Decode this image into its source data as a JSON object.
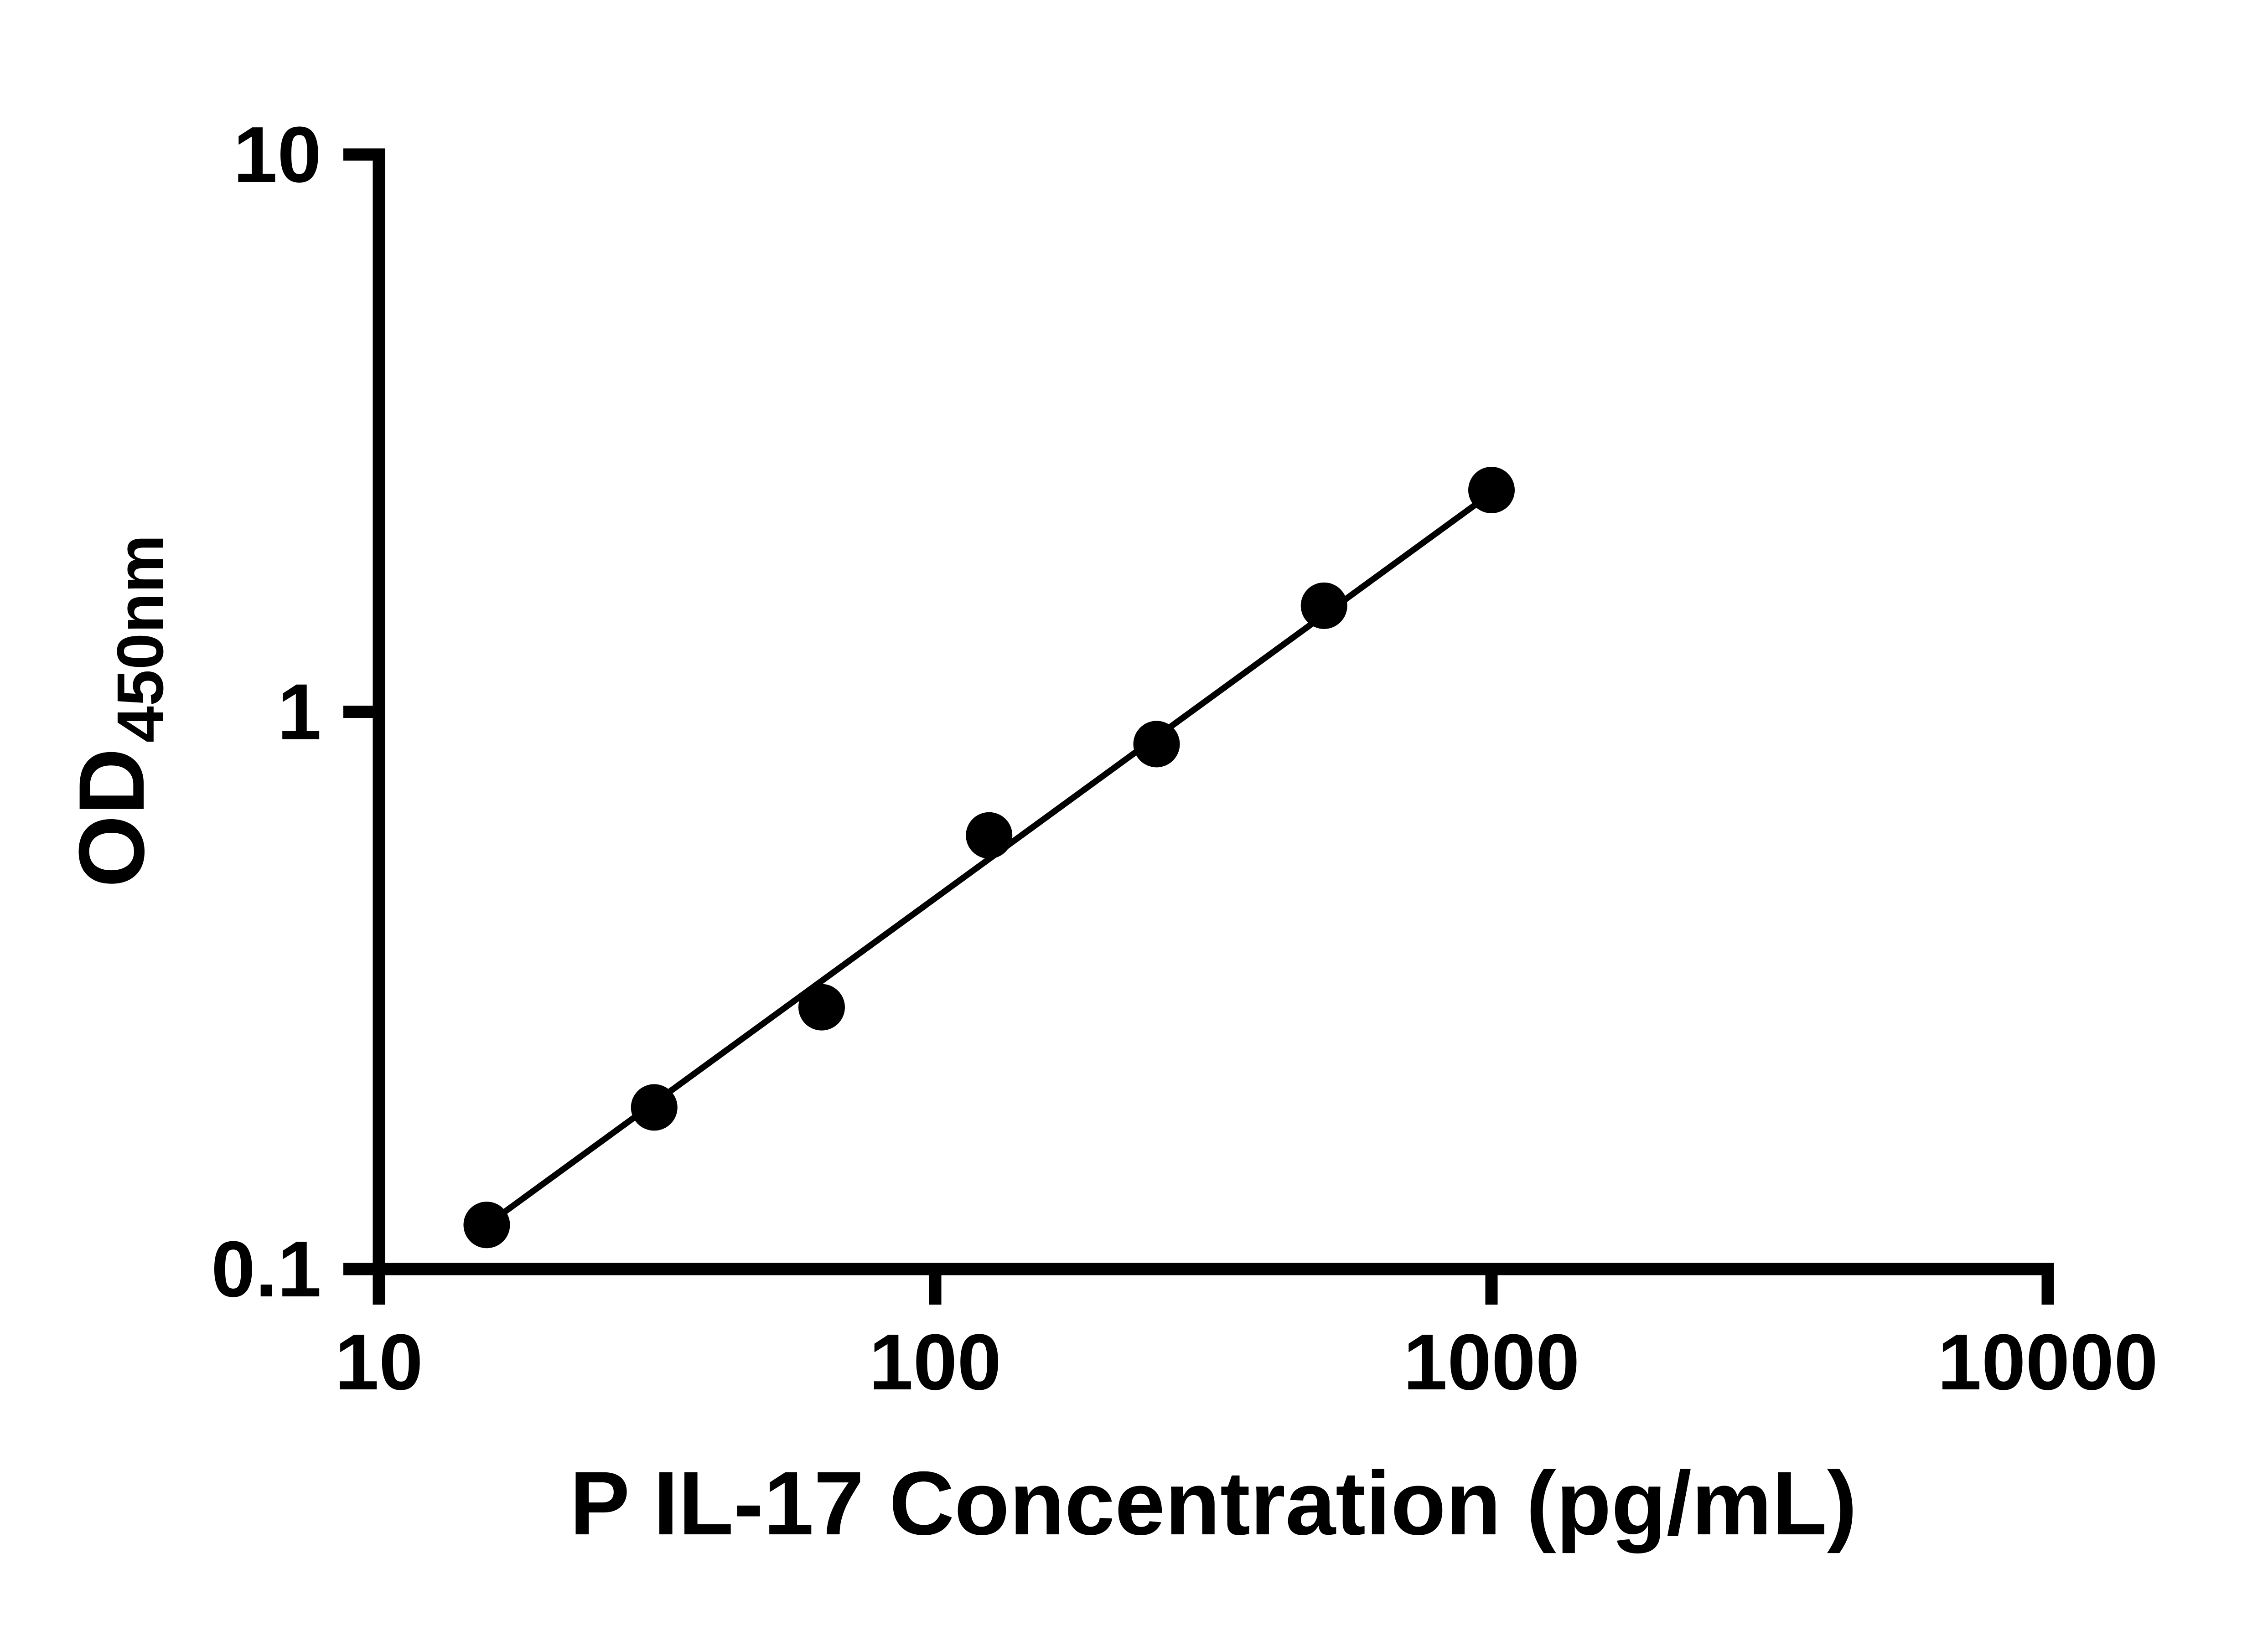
{
  "chart_data": {
    "type": "scatter",
    "title": "",
    "xlabel": "P IL-17 Concentration (pg/mL)",
    "ylabel_main": "OD",
    "ylabel_sub": "450nm",
    "x_scale": "log",
    "y_scale": "log",
    "xlim": [
      10,
      10000
    ],
    "ylim": [
      0.1,
      10
    ],
    "grid": false,
    "legend": "none",
    "x_ticks": [
      {
        "value": 10,
        "label": "10"
      },
      {
        "value": 100,
        "label": "100"
      },
      {
        "value": 1000,
        "label": "1000"
      },
      {
        "value": 10000,
        "label": "10000"
      }
    ],
    "y_ticks": [
      {
        "value": 0.1,
        "label": "0.1"
      },
      {
        "value": 1,
        "label": "1"
      },
      {
        "value": 10,
        "label": "10"
      }
    ],
    "points": [
      {
        "x": 15.625,
        "y": 0.12
      },
      {
        "x": 31.25,
        "y": 0.195
      },
      {
        "x": 62.5,
        "y": 0.295
      },
      {
        "x": 125,
        "y": 0.6
      },
      {
        "x": 250,
        "y": 0.875
      },
      {
        "x": 500,
        "y": 1.55
      },
      {
        "x": 1000,
        "y": 2.5
      }
    ],
    "trend_line": {
      "x1": 15.625,
      "y1": 0.12,
      "x2": 1000,
      "y2": 2.47
    },
    "marker_color": "#000000",
    "line_color": "#000000",
    "axis_color": "#000000"
  }
}
